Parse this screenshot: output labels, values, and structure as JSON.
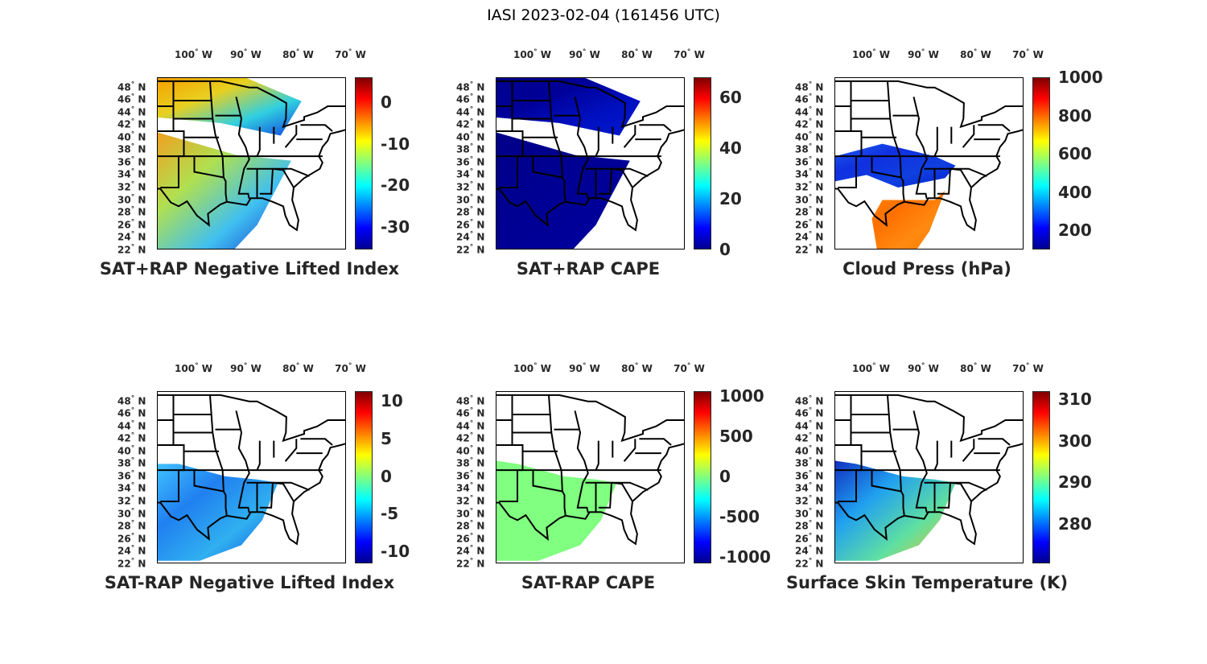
{
  "title": "IASI 2023-02-04 (161456 UTC)",
  "lon_labels": [
    "100",
    "90",
    "80",
    "70"
  ],
  "lon_values": [
    -100,
    -90,
    -80,
    -70
  ],
  "lon_suffix": "W",
  "lat_labels": [
    "48",
    "46",
    "44",
    "42",
    "40",
    "38",
    "36",
    "34",
    "32",
    "30",
    "28",
    "26",
    "24",
    "22"
  ],
  "lat_values": [
    48,
    46,
    44,
    42,
    40,
    38,
    36,
    34,
    32,
    30,
    28,
    26,
    24,
    22
  ],
  "lat_suffix": "N",
  "panels": [
    {
      "title": "SAT+RAP Negative Lifted Index",
      "cbar_range": [
        -35.4,
        6.0
      ],
      "ticks": [
        "0",
        "-10",
        "-20",
        "-30"
      ],
      "tick_values": [
        0,
        -10,
        -20,
        -30
      ],
      "field": "nli_total"
    },
    {
      "title": "SAT+RAP CAPE",
      "cbar_range": [
        0,
        68
      ],
      "ticks": [
        "60",
        "40",
        "20",
        "0"
      ],
      "tick_values": [
        60,
        40,
        20,
        0
      ],
      "field": "cape_total"
    },
    {
      "title": "Cloud Press (hPa)",
      "cbar_range": [
        100,
        1000
      ],
      "ticks": [
        "1000",
        "800",
        "600",
        "400",
        "200"
      ],
      "tick_values": [
        1000,
        800,
        600,
        400,
        200
      ],
      "field": "cloud"
    },
    {
      "title": "SAT-RAP Negative Lifted Index",
      "cbar_range": [
        -11.6,
        11.3
      ],
      "ticks": [
        "10",
        "5",
        "0",
        "-5",
        "-10"
      ],
      "tick_values": [
        10,
        5,
        0,
        -5,
        -10
      ],
      "field": "nli_diff"
    },
    {
      "title": "SAT-RAP CAPE",
      "cbar_range": [
        -1078,
        1056
      ],
      "ticks": [
        "1000",
        "500",
        "0",
        "-500",
        "-1000"
      ],
      "tick_values": [
        1000,
        500,
        0,
        -500,
        -1000
      ],
      "field": "cape_diff"
    },
    {
      "title": "Surface Skin Temperature (K)",
      "cbar_range": [
        270.5,
        312
      ],
      "ticks": [
        "310",
        "300",
        "290",
        "280"
      ],
      "tick_values": [
        310,
        300,
        290,
        280
      ],
      "field": "skin"
    }
  ]
}
